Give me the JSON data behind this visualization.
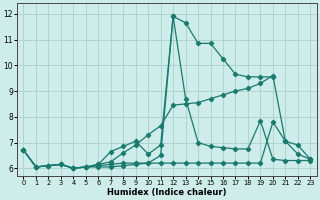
{
  "xlabel": "Humidex (Indice chaleur)",
  "xlim": [
    -0.5,
    23.5
  ],
  "ylim": [
    5.7,
    12.4
  ],
  "bg_color": "#cdecea",
  "grid_color": "#aed4d0",
  "line_color": "#1a7a6e",
  "xticks": [
    0,
    1,
    2,
    3,
    4,
    5,
    6,
    7,
    8,
    9,
    10,
    11,
    12,
    13,
    14,
    15,
    16,
    17,
    18,
    19,
    20,
    21,
    22,
    23
  ],
  "yticks": [
    6,
    7,
    8,
    9,
    10,
    11,
    12
  ],
  "series": [
    {
      "x": [
        0,
        1,
        2,
        3,
        4,
        5,
        6,
        7,
        8,
        9,
        10,
        11,
        12,
        13,
        14,
        15,
        16,
        17,
        18,
        19,
        20
      ],
      "y": [
        6.7,
        6.05,
        6.1,
        6.15,
        6.0,
        6.05,
        6.05,
        6.05,
        6.1,
        6.15,
        6.2,
        6.5,
        11.9,
        11.65,
        10.85,
        10.85,
        10.25,
        9.65,
        9.55,
        9.55,
        9.55
      ]
    },
    {
      "x": [
        0,
        1,
        2,
        3,
        4,
        5,
        6,
        7,
        8,
        9,
        10,
        11,
        12,
        13,
        14,
        15,
        16,
        17,
        18,
        19,
        20,
        21,
        22,
        23
      ],
      "y": [
        6.7,
        6.05,
        6.1,
        6.15,
        6.0,
        6.05,
        6.15,
        6.25,
        6.6,
        6.9,
        7.3,
        7.65,
        8.45,
        8.5,
        8.55,
        8.7,
        8.85,
        9.0,
        9.1,
        9.3,
        9.6,
        7.05,
        6.9,
        6.35
      ]
    },
    {
      "x": [
        0,
        1,
        2,
        3,
        4,
        5,
        6,
        7,
        8,
        9,
        10,
        11,
        12,
        13,
        14,
        15,
        16,
        17,
        18,
        19,
        20,
        21,
        22,
        23
      ],
      "y": [
        6.7,
        6.05,
        6.1,
        6.15,
        6.0,
        6.05,
        6.15,
        6.65,
        6.85,
        7.05,
        6.55,
        6.9,
        11.9,
        8.7,
        7.0,
        6.85,
        6.8,
        6.75,
        6.75,
        7.85,
        6.35,
        6.3,
        6.3,
        6.3
      ]
    },
    {
      "x": [
        0,
        1,
        2,
        3,
        4,
        5,
        6,
        7,
        8,
        9,
        10,
        11,
        12,
        13,
        14,
        15,
        16,
        17,
        18,
        19,
        20,
        21,
        22,
        23
      ],
      "y": [
        6.7,
        6.05,
        6.1,
        6.15,
        6.0,
        6.05,
        6.1,
        6.15,
        6.2,
        6.2,
        6.2,
        6.2,
        6.2,
        6.2,
        6.2,
        6.2,
        6.2,
        6.2,
        6.2,
        6.2,
        7.8,
        7.05,
        6.55,
        6.35
      ]
    }
  ]
}
